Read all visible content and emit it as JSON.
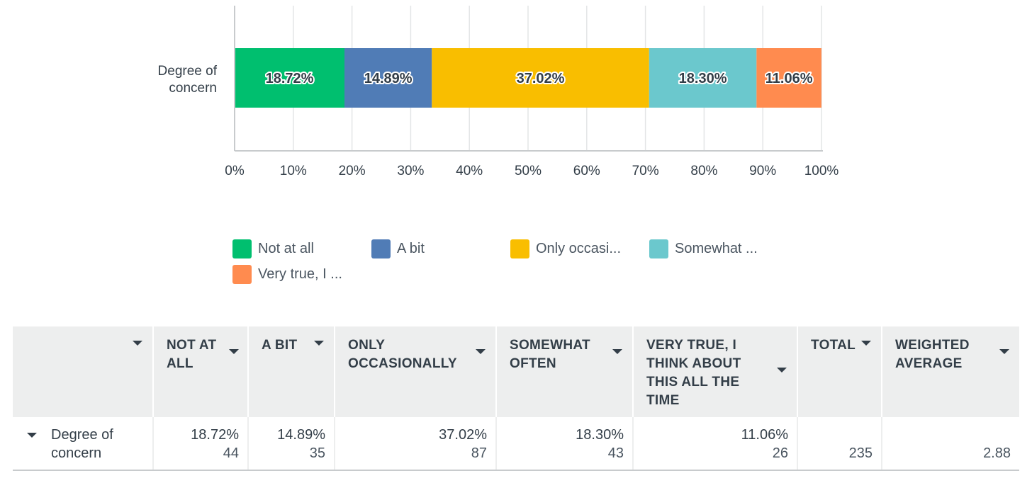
{
  "chart_data": {
    "type": "bar",
    "orientation": "horizontal",
    "stacked": true,
    "categories": [
      "Degree of concern"
    ],
    "series": [
      {
        "name": "Not at all",
        "values": [
          18.72
        ],
        "label": "18.72%",
        "color": "#00bf6f"
      },
      {
        "name": "A bit",
        "values": [
          14.89
        ],
        "label": "14.89%",
        "color": "#507cb6"
      },
      {
        "name": "Only occasionally",
        "values": [
          37.02
        ],
        "label": "37.02%",
        "color": "#f9be00"
      },
      {
        "name": "Somewhat often",
        "values": [
          18.3
        ],
        "label": "18.30%",
        "color": "#6bc8cd"
      },
      {
        "name": "Very true, I think about this all the time",
        "values": [
          11.06
        ],
        "label": "11.06%",
        "color": "#ff8b4f"
      }
    ],
    "xlim": [
      0,
      100
    ],
    "xticks": [
      "0%",
      "10%",
      "20%",
      "30%",
      "40%",
      "50%",
      "60%",
      "70%",
      "80%",
      "90%",
      "100%"
    ],
    "category_label_lines": [
      "Degree of",
      "concern"
    ],
    "grid": "vertical",
    "legend_position": "bottom"
  },
  "legend": [
    {
      "label": "Not at all",
      "color": "#00bf6f"
    },
    {
      "label": "A bit",
      "color": "#507cb6"
    },
    {
      "label": "Only occasi...",
      "color": "#f9be00"
    },
    {
      "label": "Somewhat ...",
      "color": "#6bc8cd"
    },
    {
      "label": "Very true, I ...",
      "color": "#ff8b4f"
    }
  ],
  "table": {
    "headers": [
      "",
      "NOT AT ALL",
      "A BIT",
      "ONLY OCCASIONALLY",
      "SOMEWHAT OFTEN",
      "VERY TRUE, I THINK ABOUT THIS ALL THE TIME",
      "TOTAL",
      "WEIGHTED AVERAGE"
    ],
    "row": {
      "label": "Degree of concern",
      "cells": [
        {
          "percent": "18.72%",
          "count": "44"
        },
        {
          "percent": "14.89%",
          "count": "35"
        },
        {
          "percent": "37.02%",
          "count": "87"
        },
        {
          "percent": "18.30%",
          "count": "43"
        },
        {
          "percent": "11.06%",
          "count": "26"
        },
        {
          "percent": "",
          "count": "235"
        },
        {
          "percent": "",
          "count": "2.88"
        }
      ]
    }
  }
}
